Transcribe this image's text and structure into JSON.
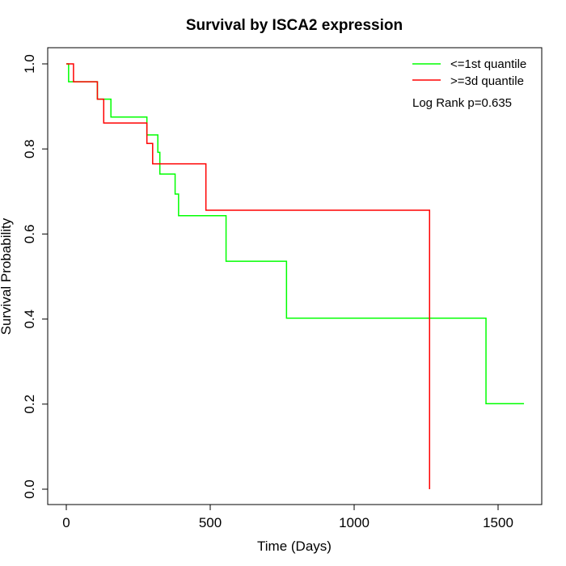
{
  "chart_data": {
    "type": "line",
    "title": "Survival by ISCA2 expression",
    "xlabel": "Time (Days)",
    "ylabel": "Survival Probability",
    "xlim": [
      0,
      1600
    ],
    "ylim": [
      0,
      1.0
    ],
    "x_ticks": [
      "0",
      "500",
      "1000",
      "1500"
    ],
    "x_tick_values": [
      0,
      500,
      1000,
      1500
    ],
    "y_ticks": [
      "0.0",
      "0.2",
      "0.4",
      "0.6",
      "0.8",
      "1.0"
    ],
    "y_tick_values": [
      0,
      0.2,
      0.4,
      0.6,
      0.8,
      1.0
    ],
    "legend_position": "top-right",
    "annotation": "Log Rank p=0.635",
    "grid": false,
    "series": [
      {
        "name": "<=1st quantile",
        "color": "#00ff00",
        "step_points": [
          [
            0,
            1.0
          ],
          [
            8,
            0.958
          ],
          [
            108,
            0.917
          ],
          [
            155,
            0.875
          ],
          [
            280,
            0.833
          ],
          [
            318,
            0.792
          ],
          [
            325,
            0.741
          ],
          [
            378,
            0.694
          ],
          [
            390,
            0.643
          ],
          [
            555,
            0.536
          ],
          [
            765,
            0.402
          ],
          [
            1458,
            0.201
          ],
          [
            1590,
            0.201
          ]
        ]
      },
      {
        "name": ">=3d quantile",
        "color": "#ff0000",
        "step_points": [
          [
            0,
            1.0
          ],
          [
            25,
            0.958
          ],
          [
            108,
            0.917
          ],
          [
            130,
            0.861
          ],
          [
            280,
            0.813
          ],
          [
            300,
            0.765
          ],
          [
            485,
            0.656
          ],
          [
            1262,
            0.0
          ]
        ]
      }
    ]
  }
}
